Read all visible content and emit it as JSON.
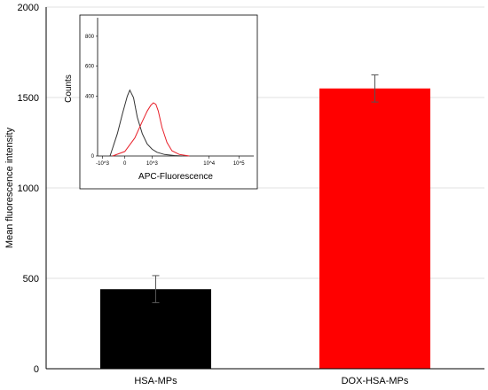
{
  "chart_data": [
    {
      "type": "bar",
      "categories": [
        "HSA-MPs",
        "DOX-HSA-MPs"
      ],
      "values": [
        440,
        1550
      ],
      "errors": [
        75,
        75
      ],
      "bar_colors": [
        "#000000",
        "#ff0000"
      ],
      "ylabel": "Mean fluorescence intensity",
      "ylim": [
        0,
        2000
      ],
      "yticks": [
        0,
        500,
        1000,
        1500,
        2000
      ],
      "grid": "horizontal"
    },
    {
      "type": "line",
      "xlabel": "APC-Fluorescence",
      "ylabel": "Counts",
      "xscale": "log",
      "xticks": [
        "-10^3",
        "0",
        "10^3",
        "10^4",
        "10^5"
      ],
      "yticks": [
        0,
        400,
        600,
        800
      ],
      "ylim": [
        0,
        900
      ],
      "series": [
        {
          "color": "#333333",
          "x": [
            -0.6,
            -0.3,
            -0.1,
            0.1,
            0.2,
            0.35,
            0.5,
            0.7,
            0.9,
            1.1,
            1.3,
            1.6,
            2.0,
            2.3
          ],
          "y": [
            0,
            150,
            280,
            400,
            440,
            390,
            260,
            150,
            80,
            45,
            25,
            10,
            3,
            0
          ]
        },
        {
          "color": "#e8202a",
          "x": [
            -0.5,
            0.0,
            0.4,
            0.7,
            0.9,
            1.05,
            1.15,
            1.25,
            1.35,
            1.5,
            1.7,
            1.9,
            2.2,
            2.6
          ],
          "y": [
            0,
            30,
            120,
            230,
            300,
            340,
            355,
            345,
            300,
            190,
            90,
            35,
            10,
            0
          ]
        }
      ]
    }
  ]
}
